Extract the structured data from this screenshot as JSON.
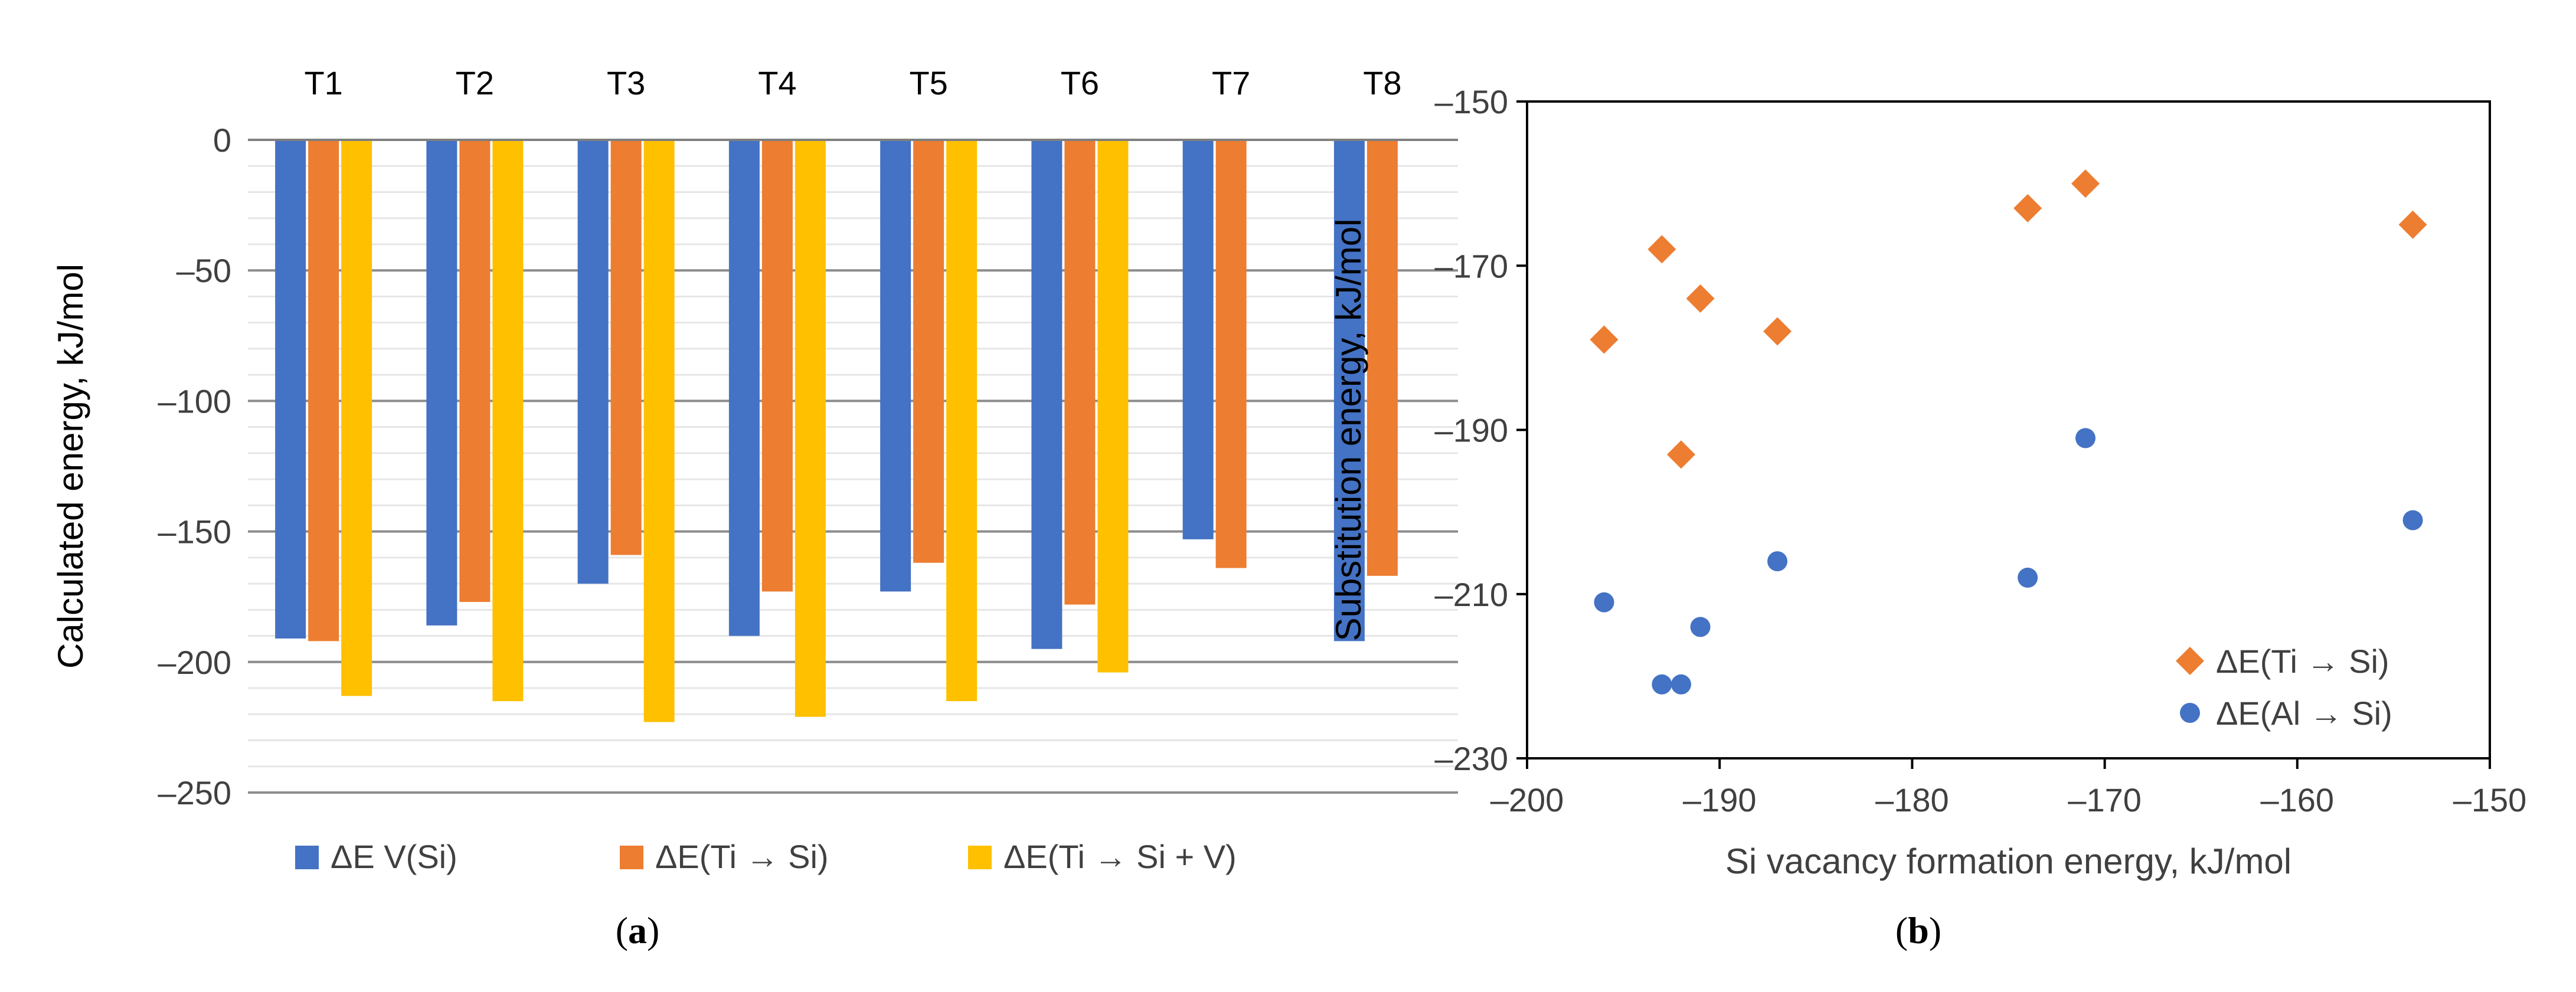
{
  "chart_data": [
    {
      "type": "bar",
      "panel_label": "a",
      "categories": [
        "T1",
        "T2",
        "T3",
        "T4",
        "T5",
        "T6",
        "T7",
        "T8"
      ],
      "series": [
        {
          "name": "ΔE V(Si)",
          "color": "#4472C4",
          "values": [
            -191,
            -186,
            -170,
            -190,
            -173,
            -195,
            -153,
            -192
          ]
        },
        {
          "name": "ΔE(Ti → Si)",
          "color": "#ED7D31",
          "values": [
            -192,
            -177,
            -159,
            -173,
            -162,
            -178,
            -164,
            -167
          ]
        },
        {
          "name": "ΔE(Ti → Si + V)",
          "color": "#FFC000",
          "values": [
            -213,
            -215,
            -223,
            -221,
            -215,
            -204,
            null,
            null
          ]
        }
      ],
      "ylabel": "Calculated energy, kJ/mol",
      "xlabel": "",
      "ylim": [
        -250,
        0
      ],
      "yticks": [
        0,
        -50,
        -100,
        -150,
        -200,
        -250
      ],
      "ytick_labels": [
        "0",
        "–50",
        "–100",
        "–150",
        "–200",
        "–250"
      ],
      "category_axis_position": "top",
      "major_grid": true,
      "minor_grid": true,
      "legend_position": "bottom"
    },
    {
      "type": "scatter",
      "panel_label": "b",
      "series": [
        {
          "name": "ΔE(Ti → Si)",
          "color": "#ED7D31",
          "marker": "diamond",
          "points": [
            [
              -196,
              -179
            ],
            [
              -193,
              -168
            ],
            [
              -192,
              -193
            ],
            [
              -191,
              -174
            ],
            [
              -187,
              -178
            ],
            [
              -174,
              -163
            ],
            [
              -171,
              -160
            ],
            [
              -154,
              -165
            ]
          ]
        },
        {
          "name": "ΔE(Al → Si)",
          "color": "#4472C4",
          "marker": "circle",
          "points": [
            [
              -196,
              -211
            ],
            [
              -193,
              -221
            ],
            [
              -192,
              -221
            ],
            [
              -191,
              -214
            ],
            [
              -187,
              -206
            ],
            [
              -174,
              -208
            ],
            [
              -171,
              -191
            ],
            [
              -154,
              -201
            ]
          ]
        }
      ],
      "xlabel": "Si vacancy formation energy, kJ/mol",
      "ylabel": "Substitution energy, kJ/mol",
      "xlim": [
        -200,
        -150
      ],
      "ylim": [
        -230,
        -150
      ],
      "xticks": [
        -200,
        -190,
        -180,
        -170,
        -160,
        -150
      ],
      "xtick_labels": [
        "–200",
        "–190",
        "–180",
        "–170",
        "–160",
        "–150"
      ],
      "yticks": [
        -150,
        -170,
        -190,
        -210,
        -230
      ],
      "ytick_labels": [
        "–150",
        "–170",
        "–190",
        "–210",
        "–230"
      ],
      "grid": false,
      "legend_position": "bottom-right"
    }
  ],
  "captions": {
    "a": "a",
    "b": "b"
  }
}
